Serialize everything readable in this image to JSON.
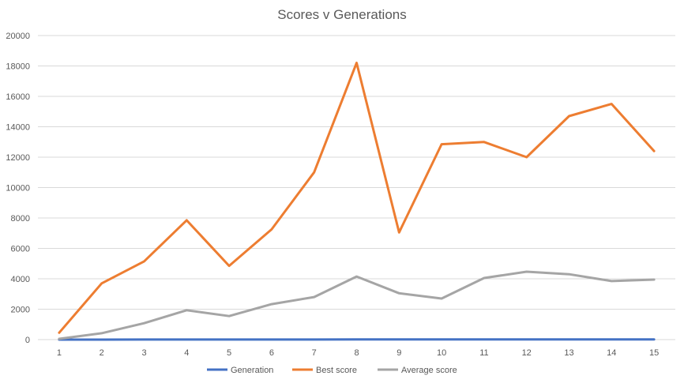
{
  "chart_data": {
    "type": "line",
    "title": "Scores v Generations",
    "x": [
      1,
      2,
      3,
      4,
      5,
      6,
      7,
      8,
      9,
      10,
      11,
      12,
      13,
      14,
      15
    ],
    "ylim": [
      0,
      20000
    ],
    "yticks": [
      0,
      2000,
      4000,
      6000,
      8000,
      10000,
      12000,
      14000,
      16000,
      18000,
      20000
    ],
    "grid": true,
    "legend_position": "bottom",
    "series": [
      {
        "name": "Generation",
        "color": "#4472c4",
        "values": [
          1,
          2,
          3,
          4,
          5,
          6,
          7,
          8,
          9,
          10,
          11,
          12,
          13,
          14,
          15
        ]
      },
      {
        "name": "Best score",
        "color": "#ed7d31",
        "values": [
          450,
          3700,
          5150,
          7850,
          4850,
          7250,
          11000,
          18200,
          7050,
          12850,
          13000,
          12000,
          14700,
          15500,
          12400
        ]
      },
      {
        "name": "Average score",
        "color": "#a5a5a5",
        "values": [
          50,
          420,
          1080,
          1930,
          1550,
          2330,
          2800,
          4150,
          3050,
          2700,
          4050,
          4470,
          4300,
          3850,
          3950
        ]
      }
    ]
  }
}
